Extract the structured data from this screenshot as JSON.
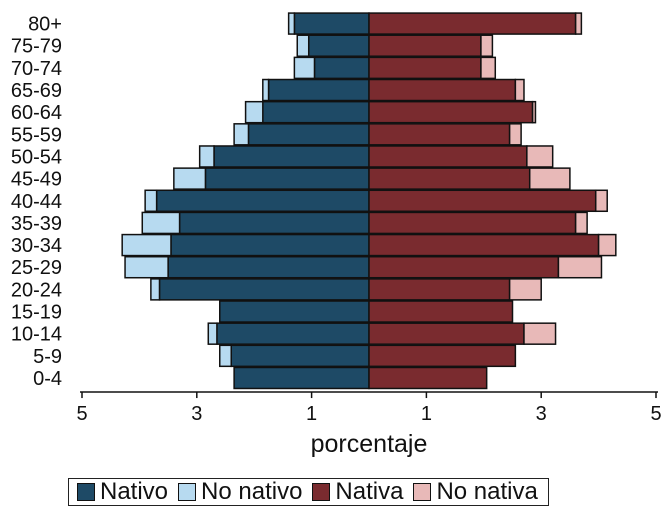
{
  "chart_data": {
    "type": "bar",
    "orientation": "horizontal",
    "layout": "population-pyramid, stacked",
    "categories": [
      "0-4",
      "5-9",
      "10-14",
      "15-19",
      "20-24",
      "25-29",
      "30-34",
      "35-39",
      "40-44",
      "45-49",
      "50-54",
      "55-59",
      "60-64",
      "65-69",
      "70-74",
      "75-79",
      "80+"
    ],
    "xlabel": "porcentaje",
    "xticks_left": [
      "5",
      "3",
      "1"
    ],
    "xticks_right": [
      "1",
      "3",
      "5"
    ],
    "xlim_each_side": [
      0,
      5
    ],
    "legend_position": "bottom",
    "series": [
      {
        "name": "Nativo",
        "side": "left",
        "color": "#1e4a66",
        "values": [
          2.35,
          2.4,
          2.65,
          2.6,
          3.65,
          3.5,
          3.45,
          3.3,
          3.7,
          2.85,
          2.7,
          2.1,
          1.85,
          1.75,
          0.95,
          1.05,
          1.3
        ]
      },
      {
        "name": "No nativo",
        "side": "left",
        "color": "#b7daf0",
        "values": [
          0.0,
          0.2,
          0.15,
          0.0,
          0.15,
          0.75,
          0.85,
          0.65,
          0.2,
          0.55,
          0.25,
          0.25,
          0.3,
          0.1,
          0.35,
          0.2,
          0.1
        ]
      },
      {
        "name": "Nativa",
        "side": "right",
        "color": "#7a2b2f",
        "values": [
          2.05,
          2.55,
          2.7,
          2.5,
          2.45,
          3.3,
          4.0,
          3.6,
          3.95,
          2.8,
          2.75,
          2.45,
          2.85,
          2.55,
          1.95,
          1.95,
          3.6
        ]
      },
      {
        "name": "No nativa",
        "side": "right",
        "color": "#e8b9b8",
        "values": [
          0.0,
          0.0,
          0.55,
          0.0,
          0.55,
          0.75,
          0.3,
          0.2,
          0.2,
          0.7,
          0.45,
          0.2,
          0.05,
          0.15,
          0.25,
          0.2,
          0.1
        ]
      }
    ]
  }
}
